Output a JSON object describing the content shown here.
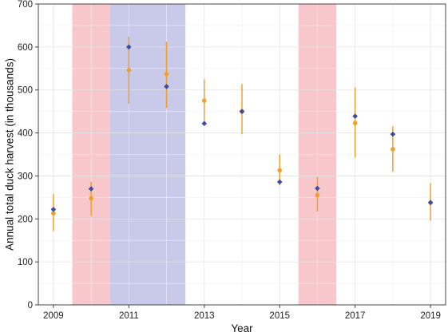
{
  "chart_data": {
    "type": "scatter",
    "title": "",
    "xlabel": "Year",
    "ylabel": "Annual total duck harvest (in thousands)",
    "xlim": [
      2008.6,
      2019.4
    ],
    "ylim": [
      0,
      700
    ],
    "x_ticks": [
      2009,
      2011,
      2013,
      2015,
      2017,
      2019
    ],
    "y_ticks": [
      0,
      100,
      200,
      300,
      400,
      500,
      600,
      700
    ],
    "x_tick_labels": [
      "2009",
      "2011",
      "2013",
      "2015",
      "2017",
      "2019"
    ],
    "y_tick_labels": [
      "0",
      "100",
      "200",
      "300",
      "400",
      "500",
      "600",
      "700"
    ],
    "grid": true,
    "shaded_periods": [
      {
        "x_start": 2009.5,
        "x_end": 2010.5,
        "color": "#f7c7cc"
      },
      {
        "x_start": 2010.5,
        "x_end": 2012.5,
        "color": "#c9c9ea"
      },
      {
        "x_start": 2015.5,
        "x_end": 2016.5,
        "color": "#f7c7cc"
      }
    ],
    "series": [
      {
        "color": "#f2a02b",
        "marker": "circle",
        "points": [
          {
            "x": 2009,
            "y": 213,
            "low": 172,
            "high": 258
          },
          {
            "x": 2010,
            "y": 248,
            "low": 207,
            "high": 287
          },
          {
            "x": 2011,
            "y": 546,
            "low": 468,
            "high": 624
          },
          {
            "x": 2012,
            "y": 537,
            "low": 458,
            "high": 612
          },
          {
            "x": 2013,
            "y": 475,
            "low": 428,
            "high": 525
          },
          {
            "x": 2014,
            "y": 450,
            "low": 397,
            "high": 514
          },
          {
            "x": 2015,
            "y": 313,
            "low": 278,
            "high": 350
          },
          {
            "x": 2016,
            "y": 255,
            "low": 217,
            "high": 298
          },
          {
            "x": 2017,
            "y": 423,
            "low": 343,
            "high": 506
          },
          {
            "x": 2018,
            "y": 362,
            "low": 310,
            "high": 416
          },
          {
            "x": 2019,
            "y": 238,
            "low": 196,
            "high": 283
          }
        ]
      },
      {
        "color": "#3b4ea0",
        "marker": "diamond",
        "points": [
          {
            "x": 2009,
            "y": 222
          },
          {
            "x": 2010,
            "y": 270
          },
          {
            "x": 2011,
            "y": 600
          },
          {
            "x": 2012,
            "y": 508
          },
          {
            "x": 2013,
            "y": 422
          },
          {
            "x": 2014,
            "y": 450
          },
          {
            "x": 2015,
            "y": 286
          },
          {
            "x": 2016,
            "y": 271
          },
          {
            "x": 2017,
            "y": 439
          },
          {
            "x": 2018,
            "y": 397
          },
          {
            "x": 2019,
            "y": 238
          }
        ]
      }
    ]
  }
}
